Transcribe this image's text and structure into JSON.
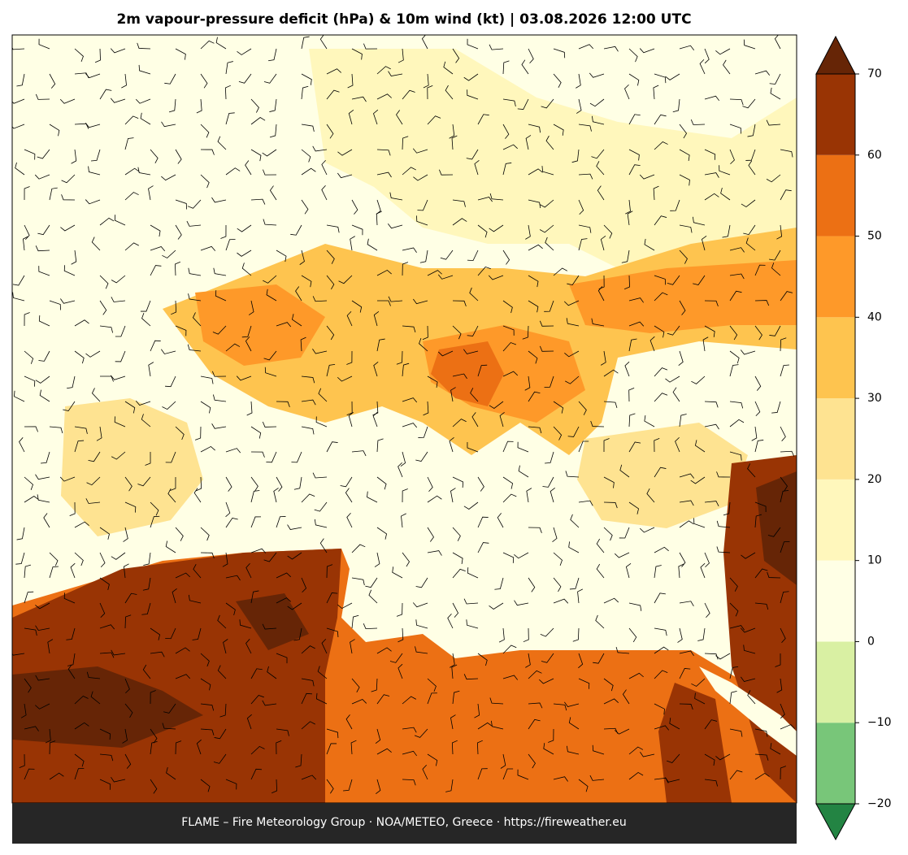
{
  "title": "2m vapour-pressure deficit (hPa) & 10m wind (kt)  |  03.08.2026 12:00 UTC",
  "footer": "FLAME – Fire Meteorology Group · NOA/METEO, Greece · https://fireweather.eu",
  "colorbar": {
    "lim": [
      -20,
      70
    ],
    "ticks": [
      {
        "value": -20,
        "label": "−20"
      },
      {
        "value": -10,
        "label": "−10"
      },
      0,
      10,
      20,
      30,
      40,
      50,
      60,
      70
    ],
    "colors": [
      "#78c679",
      "#d9f0a3",
      "#ffffe5",
      "#fff7bc",
      "#fee391",
      "#fec44f",
      "#fe9929",
      "#ec7014",
      "#993404"
    ],
    "under_color": "#238443",
    "over_color": "#662506"
  }
}
